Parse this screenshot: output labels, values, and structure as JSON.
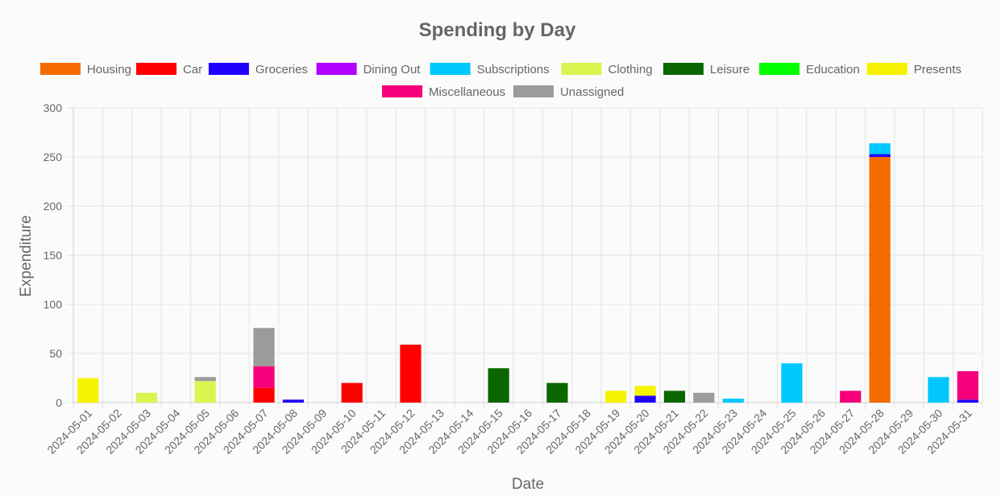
{
  "chart_data": {
    "type": "bar",
    "stacked": true,
    "title": "Spending by Day",
    "xlabel": "Date",
    "ylabel": "Expenditure",
    "ylim": [
      0,
      300
    ],
    "yticks": [
      0,
      50,
      100,
      150,
      200,
      250,
      300
    ],
    "grid": true,
    "legend_position": "top",
    "categories": [
      "2024-05-01",
      "2024-05-02",
      "2024-05-03",
      "2024-05-04",
      "2024-05-05",
      "2024-05-06",
      "2024-05-07",
      "2024-05-08",
      "2024-05-09",
      "2024-05-10",
      "2024-05-11",
      "2024-05-12",
      "2024-05-13",
      "2024-05-14",
      "2024-05-15",
      "2024-05-16",
      "2024-05-17",
      "2024-05-18",
      "2024-05-19",
      "2024-05-20",
      "2024-05-21",
      "2024-05-22",
      "2024-05-23",
      "2024-05-24",
      "2024-05-25",
      "2024-05-26",
      "2024-05-27",
      "2024-05-28",
      "2024-05-29",
      "2024-05-30",
      "2024-05-31"
    ],
    "series": [
      {
        "name": "Housing",
        "color": "#f56b00",
        "values": [
          0,
          0,
          0,
          0,
          0,
          0,
          0,
          0,
          0,
          0,
          0,
          0,
          0,
          0,
          0,
          0,
          0,
          0,
          0,
          0,
          0,
          0,
          0,
          0,
          0,
          0,
          0,
          250,
          0,
          0,
          0
        ]
      },
      {
        "name": "Car",
        "color": "#ff0000",
        "values": [
          0,
          0,
          0,
          0,
          0,
          0,
          15,
          0,
          0,
          20,
          0,
          59,
          0,
          0,
          0,
          0,
          0,
          0,
          0,
          0,
          0,
          0,
          0,
          0,
          0,
          0,
          0,
          0,
          0,
          0,
          0
        ]
      },
      {
        "name": "Groceries",
        "color": "#1f00ff",
        "values": [
          0,
          0,
          0,
          0,
          0,
          0,
          0,
          3,
          0,
          0,
          0,
          0,
          0,
          0,
          0,
          0,
          0,
          0,
          0,
          7,
          0,
          0,
          0,
          0,
          0,
          0,
          0,
          3,
          0,
          0,
          3
        ]
      },
      {
        "name": "Dining Out",
        "color": "#b000ff",
        "values": [
          0,
          0,
          0,
          0,
          0,
          0,
          0,
          0,
          0,
          0,
          0,
          0,
          0,
          0,
          0,
          0,
          0,
          0,
          0,
          0,
          0,
          0,
          0,
          0,
          0,
          0,
          0,
          0,
          0,
          0,
          0
        ]
      },
      {
        "name": "Subscriptions",
        "color": "#00c8ff",
        "values": [
          0,
          0,
          0,
          0,
          0,
          0,
          0,
          0,
          0,
          0,
          0,
          0,
          0,
          0,
          0,
          0,
          0,
          0,
          0,
          0,
          0,
          0,
          4,
          0,
          40,
          0,
          0,
          11,
          0,
          26,
          0
        ]
      },
      {
        "name": "Clothing",
        "color": "#d9f550",
        "values": [
          0,
          0,
          10,
          0,
          22,
          0,
          0,
          0,
          0,
          0,
          0,
          0,
          0,
          0,
          0,
          0,
          0,
          0,
          0,
          0,
          0,
          0,
          0,
          0,
          0,
          0,
          0,
          0,
          0,
          0,
          0
        ]
      },
      {
        "name": "Leisure",
        "color": "#0c6600",
        "values": [
          0,
          0,
          0,
          0,
          0,
          0,
          0,
          0,
          0,
          0,
          0,
          0,
          0,
          0,
          35,
          0,
          20,
          0,
          0,
          0,
          12,
          0,
          0,
          0,
          0,
          0,
          0,
          0,
          0,
          0,
          0
        ]
      },
      {
        "name": "Education",
        "color": "#00ff00",
        "values": [
          0,
          0,
          0,
          0,
          0,
          0,
          0,
          0,
          0,
          0,
          0,
          0,
          0,
          0,
          0,
          0,
          0,
          0,
          0,
          0,
          0,
          0,
          0,
          0,
          0,
          0,
          0,
          0,
          0,
          0,
          0
        ]
      },
      {
        "name": "Presents",
        "color": "#f7f200",
        "values": [
          25,
          0,
          0,
          0,
          0,
          0,
          0,
          0,
          0,
          0,
          0,
          0,
          0,
          0,
          0,
          0,
          0,
          0,
          12,
          10,
          0,
          0,
          0,
          0,
          0,
          0,
          0,
          0,
          0,
          0,
          0
        ]
      },
      {
        "name": "Miscellaneous",
        "color": "#f5007a",
        "values": [
          0,
          0,
          0,
          0,
          0,
          0,
          22,
          0,
          0,
          0,
          0,
          0,
          0,
          0,
          0,
          0,
          0,
          0,
          0,
          0,
          0,
          0,
          0,
          0,
          0,
          0,
          12,
          0,
          0,
          0,
          29
        ]
      },
      {
        "name": "Unassigned",
        "color": "#9b9b9b",
        "values": [
          0,
          0,
          0,
          0,
          4,
          0,
          39,
          0,
          0,
          0,
          0,
          0,
          0,
          0,
          0,
          0,
          0,
          0,
          0,
          0,
          0,
          10,
          0,
          0,
          0,
          0,
          0,
          0,
          0,
          0,
          0
        ]
      }
    ]
  }
}
